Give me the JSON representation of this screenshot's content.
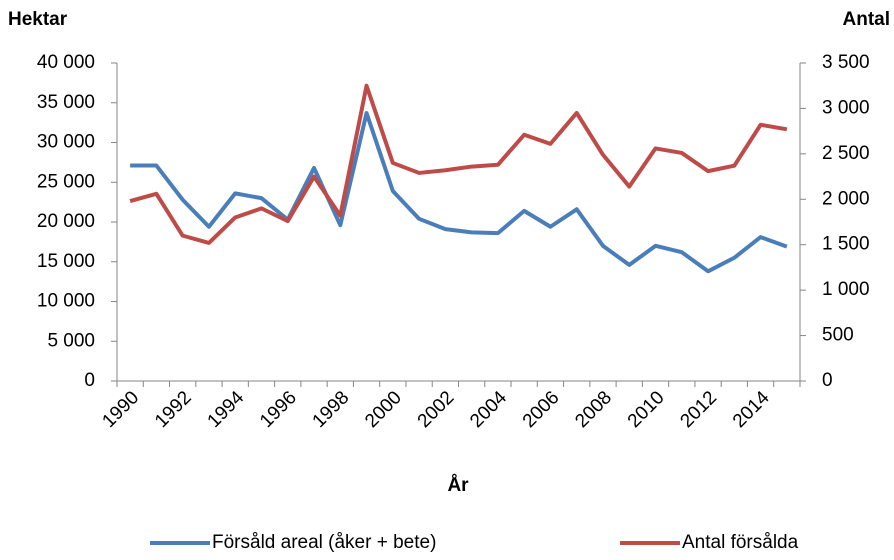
{
  "chart_data": {
    "type": "line",
    "y_label": "Hektar",
    "y2_label": "Antal",
    "x_label": "År",
    "categories": [
      "1990",
      null,
      "1992",
      null,
      "1994",
      null,
      "1996",
      null,
      "1998",
      null,
      "2000",
      null,
      "2002",
      null,
      "2004",
      null,
      "2006",
      null,
      "2008",
      null,
      "2010",
      null,
      "2012",
      null,
      "2014",
      null
    ],
    "series": [
      {
        "name": "Försåld areal (åker + bete)",
        "color": "#4a7ebb",
        "axis": "y",
        "values": [
          27100,
          27100,
          22800,
          19400,
          23600,
          23000,
          20300,
          26800,
          19600,
          33700,
          23900,
          20400,
          19100,
          18700,
          18600,
          21400,
          19400,
          21600,
          17000,
          14600,
          17000,
          16200,
          13800,
          15500,
          18100,
          16900
        ]
      },
      {
        "name": "Antal försålda",
        "color": "#be4b48",
        "axis": "y2",
        "values": [
          1980,
          2060,
          1600,
          1520,
          1800,
          1900,
          1760,
          2250,
          1820,
          3250,
          2400,
          2290,
          2320,
          2360,
          2380,
          2710,
          2610,
          2950,
          2490,
          2140,
          2560,
          2510,
          2310,
          2370,
          2820,
          2770
        ]
      }
    ],
    "ylim": [
      0,
      40000
    ],
    "yticks": [
      0,
      {
        "value": 5000,
        "label": "5 000"
      },
      {
        "value": 10000,
        "label": "10 000"
      },
      {
        "value": 15000,
        "label": "15 000"
      },
      {
        "value": 20000,
        "label": "20 000"
      },
      {
        "value": 25000,
        "label": "25 000"
      },
      {
        "value": 30000,
        "label": "30 000"
      },
      {
        "value": 35000,
        "label": "35 000"
      },
      {
        "value": 40000,
        "label": "40 000"
      }
    ],
    "y2lim": [
      0,
      3500
    ],
    "y2ticks": [
      0,
      500,
      {
        "value": 1000,
        "label": "1 000"
      },
      {
        "value": 1500,
        "label": "1 500"
      },
      {
        "value": 2000,
        "label": "2 000"
      },
      {
        "value": 2500,
        "label": "2 500"
      },
      {
        "value": 3000,
        "label": "3 000"
      },
      {
        "value": 3500,
        "label": "3 500"
      }
    ],
    "grid": false,
    "legend": "bottom"
  }
}
